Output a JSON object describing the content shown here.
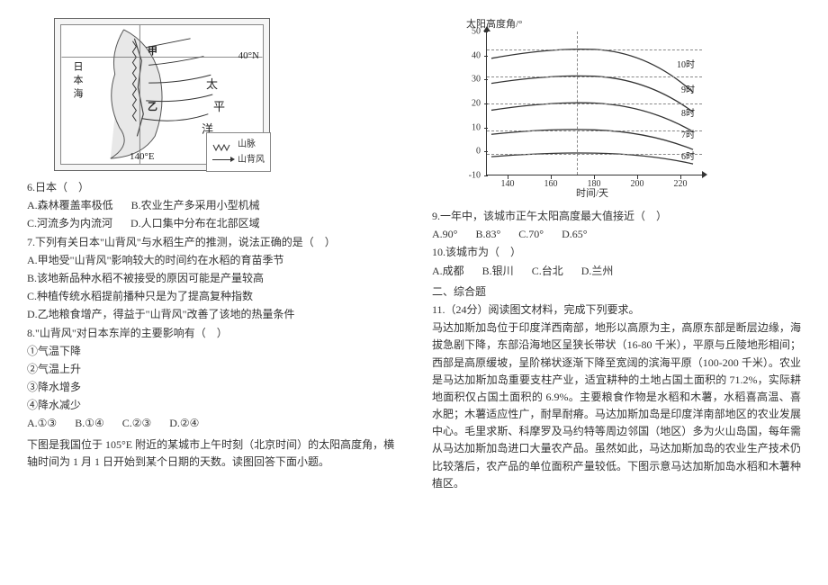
{
  "left": {
    "map": {
      "labels": {
        "sea_nw": "日本海",
        "lat": "40°N",
        "lon": "140°E",
        "ocean_e1": "太",
        "ocean_e2": "平",
        "ocean_e3": "洋",
        "jia": "甲",
        "yi": "乙"
      },
      "legend": {
        "mountain": "山脉",
        "wind": "山背风"
      }
    },
    "q6": {
      "stem": "6.日本（　）",
      "A": "A.森林覆盖率极低",
      "B": "B.农业生产多采用小型机械",
      "C": "C.河流多为内流河",
      "D": "D.人口集中分布在北部区域"
    },
    "q7": {
      "stem": "7.下列有关日本\"山背风\"与水稻生产的推测，说法正确的是（　）",
      "A": "A.甲地受\"山背风\"影响较大的时间约在水稻的育苗季节",
      "B": "B.该地新品种水稻不被接受的原因可能是产量较高",
      "C": "C.种植传统水稻提前播种只是为了提高复种指数",
      "D": "D.乙地粮食增产，得益于\"山背风\"改善了该地的热量条件"
    },
    "q8": {
      "stem": "8.\"山背风\"对日本东岸的主要影响有（　）",
      "i1": "①气温下降",
      "i2": "②气温上升",
      "i3": "③降水增多",
      "i4": "④降水减少",
      "A": "A.①③",
      "B": "B.①④",
      "C": "C.②③",
      "D": "D.②④"
    },
    "passage2": "下图是我国位于 105°E 附近的某城市上午时刻（北京时间）的太阳高度角，横轴时间为 1 月 1 日开始到某个日期的天数。读图回答下面小题。"
  },
  "right": {
    "chart": {
      "y_label": "太阳高度角/°",
      "x_label": "时间/天",
      "yticks": [
        -10,
        0,
        10,
        20,
        30,
        40,
        50
      ],
      "xticks": [
        140,
        160,
        180,
        200,
        220
      ],
      "curves": [
        "6时",
        "7时",
        "8时",
        "9时",
        "10时"
      ],
      "vline_x": 172,
      "background_color": "#ffffff",
      "line_color": "#333333",
      "dash_color": "#888888"
    },
    "q9": {
      "stem": "9.一年中，该城市正午太阳高度最大值接近（　）",
      "A": "A.90°",
      "B": "B.83°",
      "C": "C.70°",
      "D": "D.65°"
    },
    "q10": {
      "stem": "10.该城市为（　）",
      "A": "A.成都",
      "B": "B.银川",
      "C": "C.台北",
      "D": "D.兰州"
    },
    "section": "二、综合题",
    "q11": {
      "stem": "11.（24分）阅读图文材料，完成下列要求。",
      "para": "马达加斯加岛位于印度洋西南部，地形以高原为主，高原东部是断层边缘，海拔急剧下降，东部沿海地区呈狭长带状（16-80 千米），平原与丘陵地形相间；西部是高原缓坡，呈阶梯状逐渐下降至宽阔的滨海平原（100-200 千米）。农业是马达加斯加岛重要支柱产业，适宜耕种的土地占国土面积的 71.2%，实际耕地面积仅占国土面积的 6.9%。主要粮食作物是水稻和木薯，水稻喜高温、喜水肥；木薯适应性广，耐旱耐瘠。马达加斯加岛是印度洋南部地区的农业发展中心。毛里求斯、科摩罗及马约特等周边邻国（地区）多为火山岛国，每年需从马达加斯加岛进口大量农产品。虽然如此，马达加斯加岛的农业生产技术仍比较落后，农产品的单位面积产量较低。下图示意马达加斯加岛水稻和木薯种植区。"
    }
  }
}
